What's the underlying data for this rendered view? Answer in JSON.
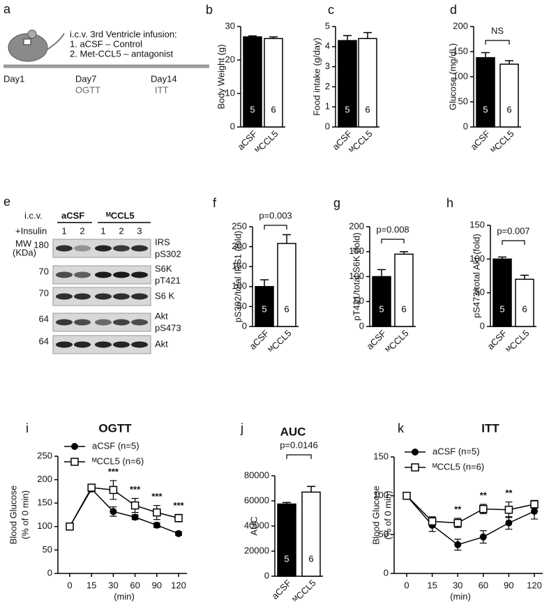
{
  "panel_a": {
    "label": "a",
    "title": "i.c.v. 3rd Ventricle infusion:",
    "items": [
      "1. aCSF – Control",
      "2. Met-CCL5 – antagonist"
    ],
    "timeline": [
      {
        "day": "Day1"
      },
      {
        "day": "Day7",
        "test": "OGTT"
      },
      {
        "day": "Day14",
        "test": "ITT"
      }
    ]
  },
  "panel_e": {
    "label": "e",
    "route": "i.c.v.",
    "treatment": "+Insulin",
    "groups": [
      {
        "name": "aCSF",
        "lanes": [
          "1",
          "2"
        ]
      },
      {
        "name": "ᴹCCL5",
        "lanes": [
          "1",
          "2",
          "3"
        ]
      }
    ],
    "mw_label": "MW",
    "mw_unit": "(KDa)",
    "rows": [
      {
        "mw": "180",
        "labels": [
          "IRS",
          "pS302"
        ]
      },
      {
        "mw": "70",
        "labels": [
          "S6K",
          "pT421"
        ]
      },
      {
        "mw": "70",
        "labels": [
          "S6 K"
        ]
      },
      {
        "mw": "64",
        "labels": [
          "Akt",
          "pS473"
        ]
      },
      {
        "mw": "64",
        "labels": [
          "Akt"
        ]
      }
    ]
  },
  "chart_data": [
    {
      "type": "bar",
      "label": "b",
      "ylabel": "Body Weight (g)",
      "categories": [
        "aCSF",
        "ᴹCCL5"
      ],
      "values": [
        26.9,
        26.4
      ],
      "errors": [
        0.3,
        0.5
      ],
      "n": [
        5,
        6
      ],
      "colors": [
        "#000000",
        "#ffffff"
      ],
      "ylim": [
        0,
        30
      ],
      "yticks": [
        0,
        10,
        20,
        30
      ]
    },
    {
      "type": "bar",
      "label": "c",
      "ylabel": "Food intake (g/day)",
      "categories": [
        "aCSF",
        "ᴹCCL5"
      ],
      "values": [
        4.3,
        4.4
      ],
      "errors": [
        0.25,
        0.3
      ],
      "n": [
        5,
        6
      ],
      "colors": [
        "#000000",
        "#ffffff"
      ],
      "ylim": [
        0,
        5
      ],
      "yticks": [
        0,
        1,
        2,
        3,
        4,
        5
      ]
    },
    {
      "type": "bar",
      "label": "d",
      "ylabel": "Glucose (mg/dL)",
      "categories": [
        "aCSF",
        "ᴹCCL5"
      ],
      "values": [
        138,
        125
      ],
      "errors": [
        10,
        7
      ],
      "n": [
        5,
        6
      ],
      "colors": [
        "#000000",
        "#ffffff"
      ],
      "ylim": [
        0,
        200
      ],
      "yticks": [
        0,
        50,
        100,
        150,
        200
      ],
      "annotation": "NS"
    },
    {
      "type": "bar",
      "label": "f",
      "ylabel": "pS302/total IRS1 (fold)",
      "categories": [
        "aCSF",
        "ᴹCCL5"
      ],
      "values": [
        100,
        208
      ],
      "errors": [
        17,
        22
      ],
      "n": [
        5,
        6
      ],
      "colors": [
        "#000000",
        "#ffffff"
      ],
      "ylim": [
        0,
        250
      ],
      "yticks": [
        0,
        50,
        100,
        150,
        200,
        250
      ],
      "annotation": "p=0.003"
    },
    {
      "type": "bar",
      "label": "g",
      "ylabel": "pT421/total S6K (fold)",
      "categories": [
        "aCSF",
        "ᴹCCL5"
      ],
      "values": [
        100,
        145
      ],
      "errors": [
        14,
        5
      ],
      "n": [
        5,
        6
      ],
      "colors": [
        "#000000",
        "#ffffff"
      ],
      "ylim": [
        0,
        200
      ],
      "yticks": [
        0,
        50,
        100,
        150,
        200
      ],
      "annotation": "p=0.008"
    },
    {
      "type": "bar",
      "label": "h",
      "ylabel": "pS473/total Akt (fold)",
      "categories": [
        "aCSF",
        "ᴹCCL5"
      ],
      "values": [
        100,
        70
      ],
      "errors": [
        3,
        6
      ],
      "n": [
        5,
        6
      ],
      "colors": [
        "#000000",
        "#ffffff"
      ],
      "ylim": [
        0,
        150
      ],
      "yticks": [
        0,
        50,
        100,
        150
      ],
      "annotation": "p=0.007"
    },
    {
      "type": "line",
      "label": "i",
      "title": "OGTT",
      "ylabel": [
        "Blood Glucose",
        "(% of 0 min)"
      ],
      "xlabel": "(min)",
      "categories": [
        "0",
        "15",
        "30",
        "60",
        "90",
        "120"
      ],
      "series": [
        {
          "name": "aCSF (n=5)",
          "color": "#000000",
          "marker": "circle",
          "values": [
            100,
            180,
            132,
            120,
            103,
            85
          ],
          "errors": [
            5,
            5,
            10,
            5,
            5,
            4
          ]
        },
        {
          "name": "ᴹCCL5 (n=6)",
          "color": "#000000",
          "marker": "square",
          "values": [
            100,
            183,
            178,
            145,
            130,
            118
          ],
          "errors": [
            5,
            5,
            20,
            15,
            15,
            8
          ]
        }
      ],
      "significance": [
        null,
        null,
        "***",
        "***",
        "***",
        "***"
      ],
      "ylim": [
        0,
        250
      ],
      "yticks": [
        0,
        50,
        100,
        150,
        200,
        250
      ]
    },
    {
      "type": "bar",
      "label": "j",
      "title": "AUC",
      "ylabel": "AUC",
      "categories": [
        "aCSF",
        "ᴹCCL5"
      ],
      "values": [
        57500,
        67000
      ],
      "errors": [
        1200,
        4500
      ],
      "n": [
        5,
        6
      ],
      "colors": [
        "#000000",
        "#ffffff"
      ],
      "ylim": [
        0,
        80000
      ],
      "yticks": [
        0,
        20000,
        40000,
        60000,
        80000
      ],
      "annotation": "p=0.0146"
    },
    {
      "type": "line",
      "label": "k",
      "title": "ITT",
      "ylabel": [
        "Blood Glucose",
        "(% of 0 min)"
      ],
      "xlabel": "(min)",
      "categories": [
        "0",
        "15",
        "30",
        "60",
        "90",
        "120"
      ],
      "series": [
        {
          "name": "aCSF (n=5)",
          "color": "#000000",
          "marker": "circle",
          "values": [
            100,
            62,
            37,
            47,
            65,
            80
          ],
          "errors": [
            3,
            8,
            7,
            8,
            8,
            10
          ]
        },
        {
          "name": "ᴹCCL5 (n=6)",
          "color": "#000000",
          "marker": "square",
          "values": [
            100,
            67,
            65,
            83,
            82,
            89
          ],
          "errors": [
            3,
            6,
            6,
            6,
            10,
            5
          ]
        }
      ],
      "significance": [
        null,
        null,
        "**",
        "**",
        "**",
        null
      ],
      "ylim": [
        0,
        150
      ],
      "yticks": [
        0,
        50,
        100,
        150
      ]
    }
  ]
}
